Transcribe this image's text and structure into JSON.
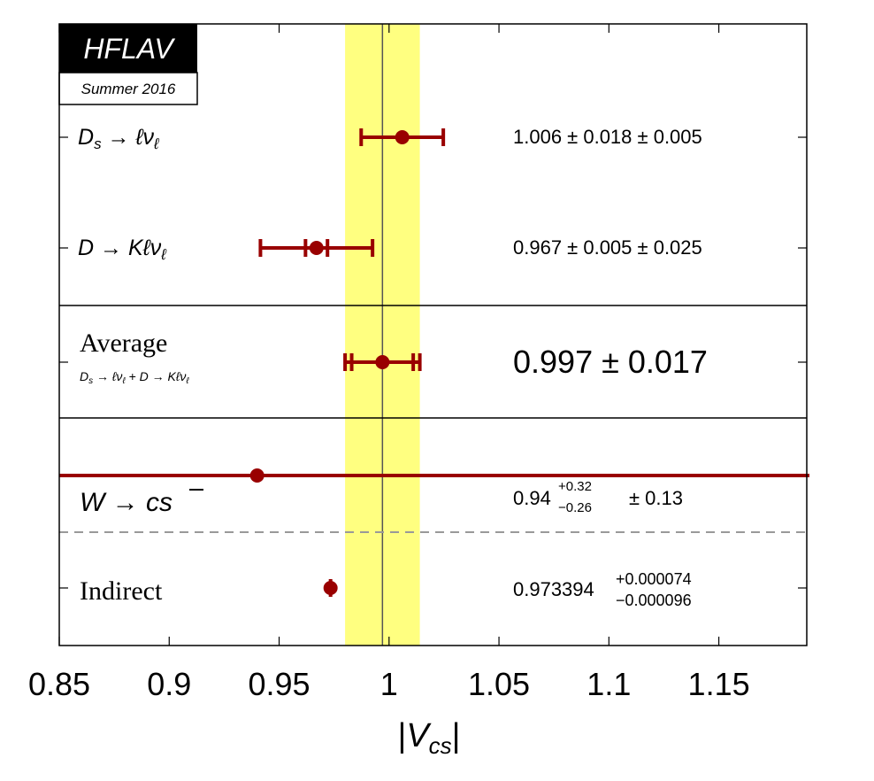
{
  "badge": {
    "title": "HFLAV",
    "subtitle": "Summer 2016",
    "colors": {
      "title_bg": "#000000",
      "title_fg": "#ffffff"
    }
  },
  "chart_data": {
    "type": "scatter",
    "orientation": "horizontal error bars",
    "title": "",
    "xlabel_symbol": "V",
    "xlabel_sub": "cs",
    "xlim": [
      0.85,
      1.19
    ],
    "xticks": [
      0.85,
      0.9,
      0.95,
      1,
      1.05,
      1.1,
      1.15
    ],
    "xtick_labels": [
      "0.85",
      "0.9",
      "0.95",
      "1",
      "1.05",
      "1.1",
      "1.15"
    ],
    "band": {
      "center": 0.997,
      "low": 0.98,
      "high": 1.014,
      "color": "#ffff80",
      "line_color": "#555555"
    },
    "marker_color": "#990000",
    "entries": [
      {
        "label": "Ds → ℓνℓ",
        "value": 1.006,
        "stat_err": 0.018,
        "syst_err": 0.005,
        "value_text": "1.006 ± 0.018 ± 0.005"
      },
      {
        "label": "D → Kℓνℓ",
        "value": 0.967,
        "stat_err": 0.005,
        "syst_err": 0.025,
        "value_text": "0.967 ± 0.005 ± 0.025"
      },
      {
        "label": "Average",
        "sublabel": "Ds → ℓνℓ + D → Kℓνℓ",
        "value": 0.997,
        "stat_err": 0.014,
        "total_err": 0.017,
        "value_text": "0.997 ± 0.017"
      },
      {
        "label": "W → cs̄",
        "value": 0.94,
        "err_plus": 0.32,
        "err_minus": 0.26,
        "syst_err": 0.13,
        "value_text_main": "0.94",
        "value_text_sup": "+0.32",
        "value_text_sub": "−0.26",
        "value_text_tail": "± 0.13"
      },
      {
        "label": "Indirect",
        "value": 0.973394,
        "err_plus": 7.4e-05,
        "err_minus": 9.6e-05,
        "value_text_main": "0.973394",
        "value_text_sup": "+0.000074",
        "value_text_sub": "−0.000096"
      }
    ]
  }
}
